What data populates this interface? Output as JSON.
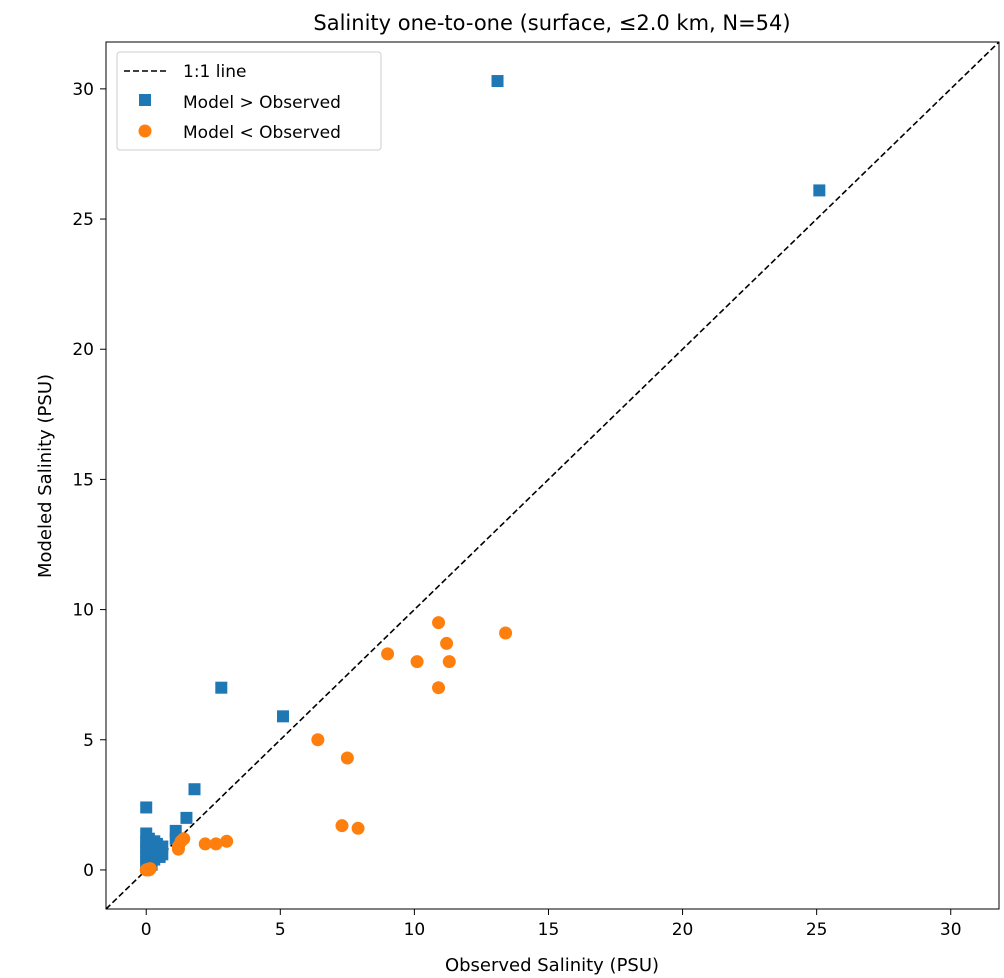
{
  "chart_data": {
    "type": "scatter",
    "title": "Salinity one-to-one (surface, ≤2.0 km, N=54)",
    "xlabel": "Observed Salinity (PSU)",
    "ylabel": "Modeled Salinity (PSU)",
    "xlim": [
      -1.5,
      31.8
    ],
    "ylim": [
      -1.5,
      31.8
    ],
    "xticks": [
      0,
      5,
      10,
      15,
      20,
      25,
      30
    ],
    "yticks": [
      0,
      5,
      10,
      15,
      20,
      25,
      30
    ],
    "grid": false,
    "legend_position": "top-left",
    "reference_line": {
      "name": "1:1 line",
      "style": "dashed",
      "color": "#000000",
      "from": [
        -1.5,
        -1.5
      ],
      "to": [
        31.8,
        31.8
      ]
    },
    "series": [
      {
        "name": "Model > Observed",
        "marker": "square",
        "color": "#1f77b4",
        "points": [
          [
            13.1,
            30.3
          ],
          [
            25.1,
            26.1
          ],
          [
            2.8,
            7.0
          ],
          [
            5.1,
            5.9
          ],
          [
            1.8,
            3.1
          ],
          [
            1.5,
            2.0
          ],
          [
            1.1,
            1.5
          ],
          [
            1.1,
            1.2
          ],
          [
            0.0,
            2.4
          ],
          [
            0.0,
            1.4
          ],
          [
            0.0,
            1.1
          ],
          [
            0.0,
            0.9
          ],
          [
            0.0,
            0.7
          ],
          [
            0.0,
            0.5
          ],
          [
            0.0,
            0.3
          ],
          [
            0.0,
            0.1
          ],
          [
            0.1,
            1.2
          ],
          [
            0.1,
            0.8
          ],
          [
            0.1,
            0.4
          ],
          [
            0.2,
            0.9
          ],
          [
            0.2,
            0.6
          ],
          [
            0.2,
            0.2
          ],
          [
            0.3,
            0.7
          ],
          [
            0.3,
            0.4
          ],
          [
            0.4,
            1.0
          ],
          [
            0.4,
            0.6
          ],
          [
            0.5,
            0.8
          ],
          [
            0.5,
            0.5
          ],
          [
            0.6,
            0.9
          ],
          [
            0.6,
            0.6
          ],
          [
            0.3,
            1.1
          ],
          [
            0.05,
            0.15
          ]
        ]
      },
      {
        "name": "Model < Observed",
        "marker": "circle",
        "color": "#ff7f0e",
        "points": [
          [
            10.9,
            9.5
          ],
          [
            11.2,
            8.7
          ],
          [
            13.4,
            9.1
          ],
          [
            9.0,
            8.3
          ],
          [
            10.1,
            8.0
          ],
          [
            11.3,
            8.0
          ],
          [
            10.9,
            7.0
          ],
          [
            6.4,
            5.0
          ],
          [
            7.5,
            4.3
          ],
          [
            7.3,
            1.7
          ],
          [
            7.9,
            1.6
          ],
          [
            2.2,
            1.0
          ],
          [
            2.6,
            1.0
          ],
          [
            3.0,
            1.1
          ],
          [
            1.3,
            1.1
          ],
          [
            1.2,
            0.8
          ],
          [
            1.2,
            0.9
          ],
          [
            1.4,
            1.2
          ],
          [
            0.1,
            0.0
          ],
          [
            0.05,
            0.02
          ],
          [
            0.15,
            0.05
          ],
          [
            0.0,
            0.0
          ]
        ]
      }
    ]
  }
}
